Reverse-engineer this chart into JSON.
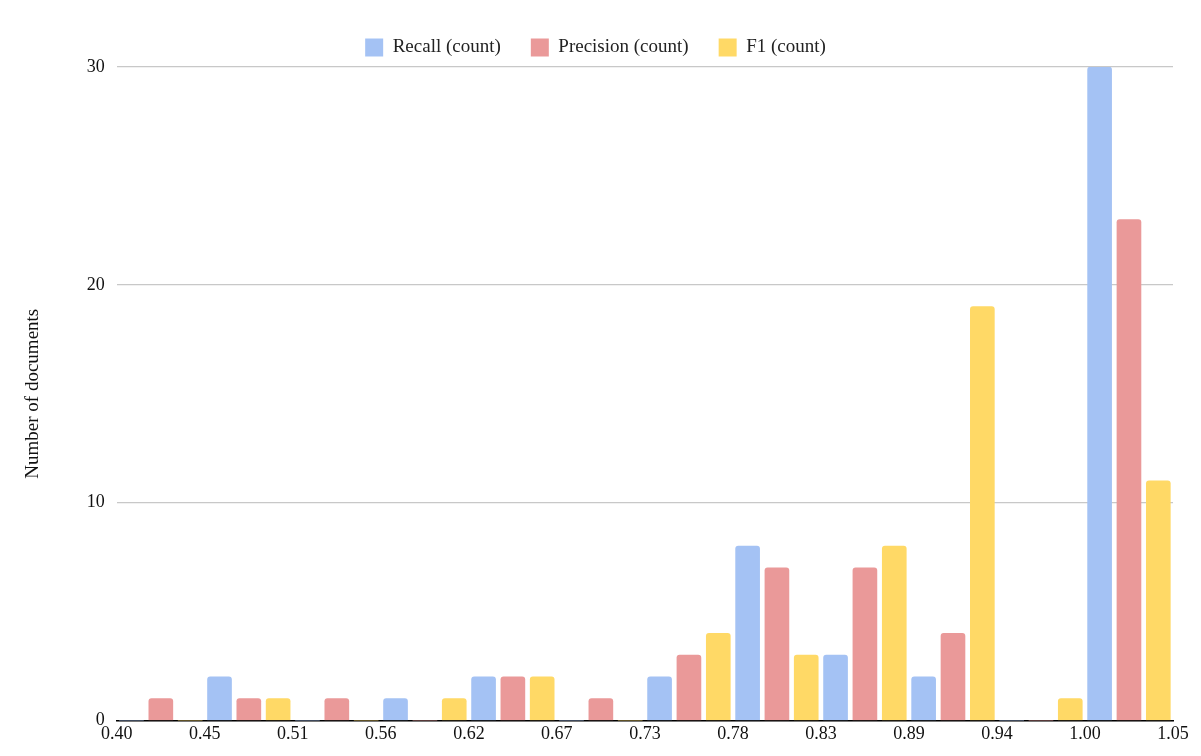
{
  "chart_data": {
    "type": "histogram",
    "ylabel": "Number of documents",
    "bins": [
      0.4,
      0.4542,
      0.5083,
      0.5625,
      0.6167,
      0.6708,
      0.725,
      0.7792,
      0.8333,
      0.8875,
      0.9417,
      0.9958,
      1.05
    ],
    "series": [
      {
        "name": "Recall (count)",
        "color": "#a4c2f4",
        "values": [
          0,
          2,
          0,
          1,
          2,
          0,
          2,
          8,
          3,
          2,
          0,
          30
        ]
      },
      {
        "name": "Precision (count)",
        "color": "#ea9999",
        "values": [
          1,
          1,
          1,
          0,
          2,
          1,
          3,
          7,
          7,
          4,
          0,
          23
        ]
      },
      {
        "name": "F1 (count)",
        "color": "#ffd966",
        "values": [
          0,
          1,
          0,
          1,
          2,
          0,
          4,
          3,
          8,
          19,
          1,
          11
        ]
      }
    ],
    "xlim": [
      0.4,
      1.05
    ],
    "xticks": [
      {
        "value": 0.4,
        "label": "0.40"
      },
      {
        "value": 0.4542,
        "label": "0.45"
      },
      {
        "value": 0.5083,
        "label": "0.51"
      },
      {
        "value": 0.5625,
        "label": "0.56"
      },
      {
        "value": 0.6167,
        "label": "0.62"
      },
      {
        "value": 0.6708,
        "label": "0.67"
      },
      {
        "value": 0.725,
        "label": "0.73"
      },
      {
        "value": 0.7792,
        "label": "0.78"
      },
      {
        "value": 0.8333,
        "label": "0.83"
      },
      {
        "value": 0.8875,
        "label": "0.89"
      },
      {
        "value": 0.9417,
        "label": "0.94"
      },
      {
        "value": 0.9958,
        "label": "1.00"
      },
      {
        "value": 1.05,
        "label": "1.05"
      }
    ],
    "ylim": [
      0,
      30
    ],
    "yticks": [
      0,
      10,
      20,
      30
    ],
    "grid": "y",
    "legend": "top"
  }
}
